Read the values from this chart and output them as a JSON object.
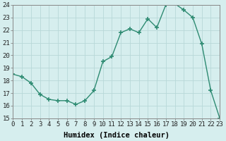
{
  "x": [
    0,
    1,
    2,
    3,
    4,
    5,
    6,
    7,
    8,
    9,
    10,
    11,
    12,
    13,
    14,
    15,
    16,
    17,
    18,
    19,
    20,
    21,
    22,
    23
  ],
  "y": [
    18.5,
    18.3,
    17.8,
    16.9,
    16.5,
    16.4,
    16.4,
    16.1,
    16.4,
    17.2,
    19.5,
    19.9,
    21.8,
    22.1,
    21.8,
    22.9,
    22.2,
    24.0,
    24.1,
    23.6,
    23.0,
    20.9,
    17.2,
    15.0
  ],
  "line_color": "#2e8b72",
  "marker": "+",
  "marker_size": 5,
  "marker_lw": 1.2,
  "bg_color": "#d6eeee",
  "grid_color": "#b8d8d8",
  "xlabel": "Humidex (Indice chaleur)",
  "xlim": [
    0,
    23
  ],
  "ylim": [
    15,
    24
  ],
  "yticks": [
    15,
    16,
    17,
    18,
    19,
    20,
    21,
    22,
    23,
    24
  ],
  "xticks": [
    0,
    1,
    2,
    3,
    4,
    5,
    6,
    7,
    8,
    9,
    10,
    11,
    12,
    13,
    14,
    15,
    16,
    17,
    18,
    19,
    20,
    21,
    22,
    23
  ],
  "tick_fontsize": 6.5,
  "xlabel_fontsize": 7.5
}
